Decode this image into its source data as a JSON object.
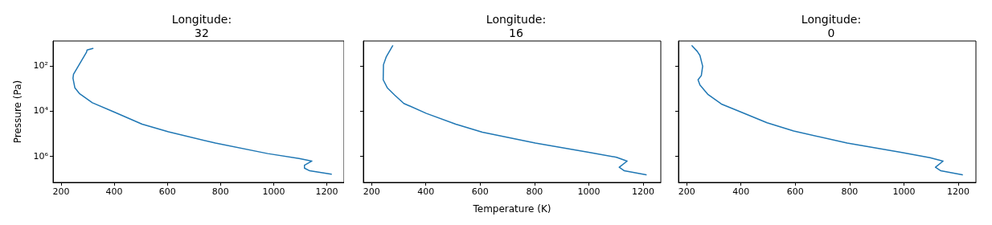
{
  "chart_data": [
    {
      "type": "line",
      "title": "Longitude:\n32",
      "ylabel": "Pressure (Pa)",
      "log": "y",
      "xlim": [
        170,
        1265
      ],
      "xticks": [
        200,
        400,
        600,
        800,
        1000,
        1200
      ],
      "ylim": [
        15000000,
        8
      ],
      "yticks": [
        {
          "value": 100,
          "label": "10²"
        },
        {
          "value": 10000,
          "label": "10⁴"
        },
        {
          "value": 1000000,
          "label": "10⁶"
        }
      ],
      "series": [
        {
          "color": "#1f77b4",
          "x": [
            320,
            298,
            296,
            247,
            245,
            252,
            269,
            318,
            397,
            505,
            604,
            781,
            978,
            1096,
            1144,
            1116,
            1116,
            1136,
            1217
          ],
          "values": [
            17,
            20,
            25,
            240,
            360,
            950,
            1700,
            4400,
            11000,
            39000,
            85000,
            270000,
            790000,
            1300000,
            1700000,
            2600000,
            3500000,
            4600000,
            6500000
          ]
        }
      ]
    },
    {
      "type": "line",
      "title": "Longitude:\n16",
      "xlabel": "Temperature (K)",
      "log": "y",
      "tick_labels": "x",
      "xlim": [
        170,
        1265
      ],
      "xticks": [
        200,
        400,
        600,
        800,
        1000,
        1200
      ],
      "ylim": [
        15000000,
        8
      ],
      "yticks": [
        100,
        10000,
        1000000
      ],
      "series": [
        {
          "color": "#1f77b4",
          "x": [
            278,
            254,
            244,
            243,
            258,
            285,
            319,
            402,
            510,
            608,
            803,
            999,
            1102,
            1141,
            1112,
            1131,
            1211
          ],
          "values": [
            13,
            41,
            91,
            420,
            950,
            2000,
            4700,
            13000,
            39000,
            89000,
            270000,
            690000,
            1150000,
            1700000,
            3200000,
            4600000,
            6900000
          ]
        }
      ]
    },
    {
      "type": "line",
      "title": "Longitude:\n0",
      "log": "y",
      "tick_labels": "x",
      "xlim": [
        170,
        1265
      ],
      "xticks": [
        200,
        400,
        600,
        800,
        1000,
        1200
      ],
      "ylim": [
        15000000,
        8
      ],
      "yticks": [
        100,
        10000,
        1000000
      ],
      "series": [
        {
          "color": "#1f77b4",
          "x": [
            220,
            239,
            249,
            259,
            254,
            242,
            249,
            279,
            328,
            397,
            496,
            594,
            791,
            988,
            1096,
            1144,
            1116,
            1136,
            1215
          ],
          "values": [
            13,
            23,
            35,
            105,
            275,
            420,
            720,
            1900,
            5000,
            11000,
            34000,
            78000,
            270000,
            690000,
            1200000,
            1700000,
            3200000,
            4600000,
            6900000
          ]
        }
      ]
    }
  ]
}
